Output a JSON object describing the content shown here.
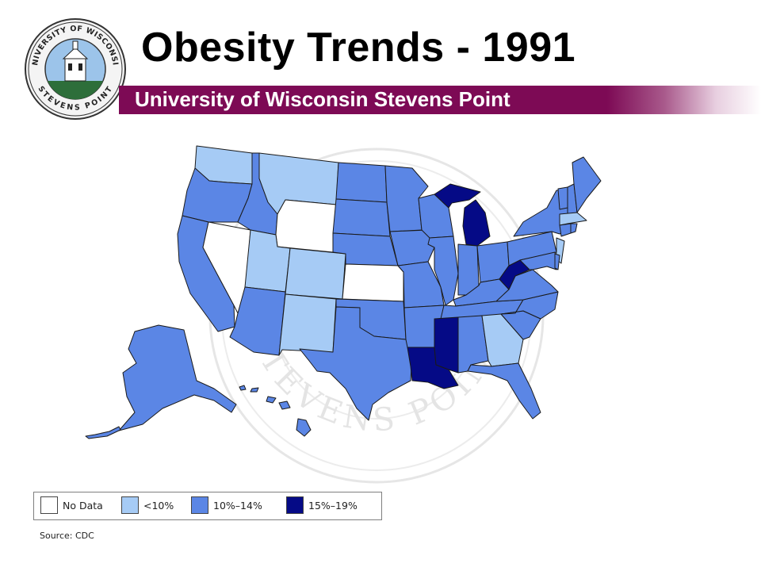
{
  "title": "Obesity Trends - 1991",
  "subtitle": "University of Wisconsin Stevens Point",
  "seal": {
    "top_text": "UNIVERSITY OF WISCONSIN",
    "bottom_text": "STEVENS POINT"
  },
  "watermark_text": "STEVENS POINT",
  "colors": {
    "no_data": "#ffffff",
    "lt10": "#a6cbf5",
    "p10_14": "#5b86e5",
    "p15_19": "#050a86",
    "banner": "#7d0a55"
  },
  "legend": [
    {
      "label": "No Data",
      "color": "#ffffff"
    },
    {
      "label": "<10%",
      "color": "#a6cbf5"
    },
    {
      "label": "10%–14%",
      "color": "#5b86e5"
    },
    {
      "label": "15%–19%",
      "color": "#050a86"
    }
  ],
  "source": "Source: CDC"
}
